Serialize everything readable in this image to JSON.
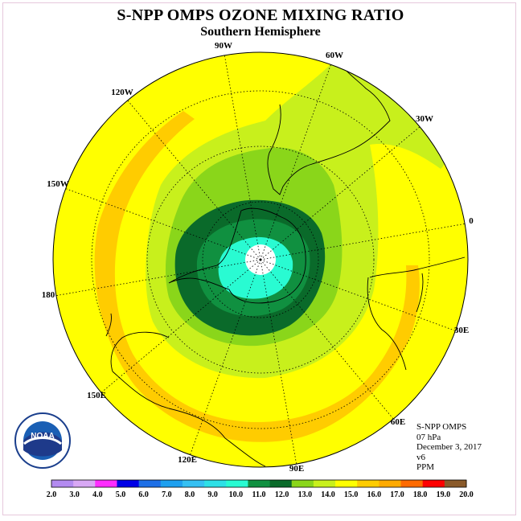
{
  "title": "S-NPP OMPS OZONE MIXING RATIO",
  "subtitle": "Southern Hemisphere",
  "meridian_labels": [
    "90W",
    "60W",
    "30W",
    "0",
    "30E",
    "60E",
    "90E",
    "120E",
    "150E",
    "180",
    "150W",
    "120W"
  ],
  "info": {
    "instrument": "S-NPP OMPS",
    "level": "07 hPa",
    "date": "December 3, 2017",
    "version": "v6",
    "units": "PPM"
  },
  "logo": {
    "text": "NOAA"
  },
  "colorbar": {
    "ticks": [
      "2.0",
      "3.0",
      "4.0",
      "5.0",
      "6.0",
      "7.0",
      "8.0",
      "9.0",
      "10.0",
      "11.0",
      "12.0",
      "13.0",
      "14.0",
      "15.0",
      "16.0",
      "17.0",
      "18.0",
      "19.0",
      "20.0"
    ],
    "colors": [
      "#b38bf0",
      "#d8a8f4",
      "#ff2cff",
      "#0000e6",
      "#1e6fe6",
      "#1ea0ef",
      "#36c0f2",
      "#2ee0e6",
      "#29fbd2",
      "#109040",
      "#0a6a2a",
      "#8ad61a",
      "#c8f01c",
      "#ffff00",
      "#ffcc00",
      "#ffaa00",
      "#ff6a00",
      "#ff0000",
      "#8a5a2a"
    ]
  },
  "map_colors": {
    "ring_15_16": "#ffcc00",
    "level_14_15": "#ffff00",
    "level_13_14": "#c8f01c",
    "level_12_13": "#8ad61a",
    "level_11_12": "#109040",
    "level_10_11": "#0a6a2a",
    "level_9_10": "#29fbd2",
    "pole_missing": "#ffffff"
  }
}
